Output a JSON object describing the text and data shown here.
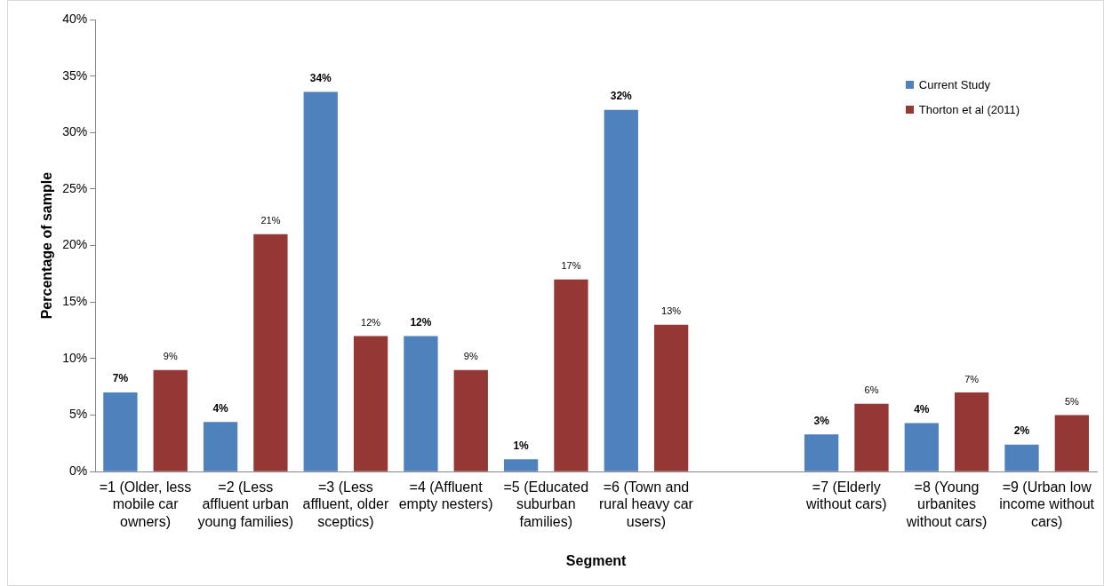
{
  "chart_data": {
    "type": "bar",
    "xlabel": "Segment",
    "ylabel": "Percentage of sample",
    "categories": [
      "=1 (Older, less mobile car owners)",
      "=2 (Less affluent urban young families)",
      "=3 (Less affluent, older sceptics)",
      "=4 (Affluent empty nesters)",
      "=5 (Educated suburban families)",
      "=6 (Town and rural heavy car users)",
      null,
      "=7 (Elderly without cars)",
      "=8 (Young urbanites without cars)",
      "=9 (Urban low income without cars)"
    ],
    "series": [
      {
        "name": "Current Study",
        "color": "#4f81bd",
        "values": [
          7,
          4.4,
          33.6,
          12,
          1.1,
          32,
          null,
          3.3,
          4.3,
          2.4
        ],
        "value_labels": [
          "7%",
          "4%",
          "34%",
          "12%",
          "1%",
          "32%",
          null,
          "3%",
          "4%",
          "2%"
        ]
      },
      {
        "name": "Thorton et al (2011)",
        "color": "#953735",
        "values": [
          9,
          21,
          12,
          9,
          17,
          13,
          null,
          6,
          7,
          5
        ],
        "value_labels": [
          "9%",
          "21%",
          "12%",
          "9%",
          "17%",
          "13%",
          null,
          "6%",
          "7%",
          "5%"
        ]
      }
    ],
    "ylim": [
      0,
      40
    ],
    "yticks": [
      {
        "value": 0,
        "label": "0%"
      },
      {
        "value": 5,
        "label": "5%"
      },
      {
        "value": 10,
        "label": "10%"
      },
      {
        "value": 15,
        "label": "15%"
      },
      {
        "value": 20,
        "label": "20%"
      },
      {
        "value": 25,
        "label": "25%"
      },
      {
        "value": 30,
        "label": "30%"
      },
      {
        "value": 35,
        "label": "35%"
      },
      {
        "value": 40,
        "label": "40%"
      }
    ],
    "grid": false,
    "legend": "top right"
  }
}
